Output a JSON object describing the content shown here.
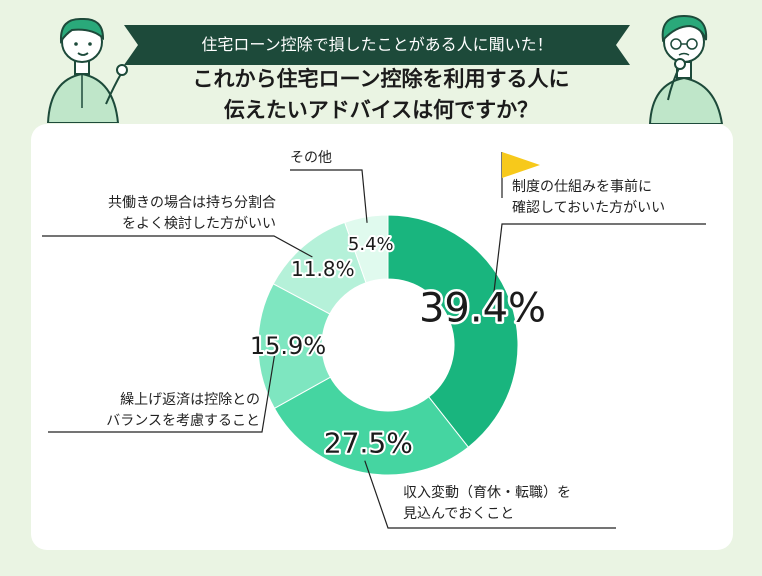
{
  "header": {
    "banner": "住宅ローン控除で損したことがある人に聞いた！",
    "title_line1": "これから住宅ローン控除を利用する人に",
    "title_line2": "伝えたいアドバイスは何ですか？"
  },
  "colors": {
    "background": "#eaf4e3",
    "banner": "#1d4a3a",
    "flag": "#f7c91b",
    "segments": [
      "#19b57e",
      "#45d5a1",
      "#7ee6c0",
      "#b5f1d9",
      "#e0faee"
    ]
  },
  "chart_data": {
    "type": "pie",
    "variant": "donut",
    "title": "これから住宅ローン控除を利用する人に伝えたいアドバイスは何ですか？",
    "unit": "%",
    "slices": [
      {
        "label_line1": "制度の仕組みを事前に",
        "label_line2": "確認しておいた方がいい",
        "value": 39.4,
        "value_label": "39.4%"
      },
      {
        "label_line1": "収入変動（育休・転職）を",
        "label_line2": "見込んでおくこと",
        "value": 27.5,
        "value_label": "27.5%"
      },
      {
        "label_line1": "繰上げ返済は控除との",
        "label_line2": "バランスを考慮すること",
        "value": 15.9,
        "value_label": "15.9%"
      },
      {
        "label_line1": "共働きの場合は持ち分割合",
        "label_line2": "をよく検討した方がいい",
        "value": 11.8,
        "value_label": "11.8%"
      },
      {
        "label_line1": "その他",
        "label_line2": "",
        "value": 5.4,
        "value_label": "5.4%"
      }
    ]
  }
}
